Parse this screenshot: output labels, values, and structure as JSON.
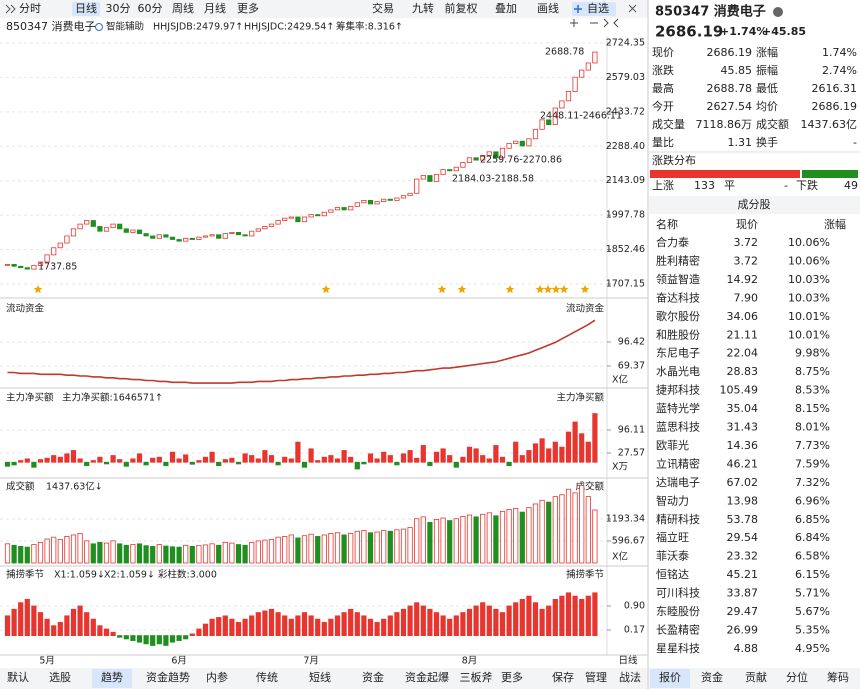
{
  "toolbar": {
    "left": [
      "分时",
      "日线",
      "30分",
      "60分",
      "周线",
      "月线",
      "更多"
    ],
    "right": [
      "交易",
      "九转",
      "前复权",
      "叠加",
      "画线",
      "自选"
    ]
  },
  "indicator_bar": {
    "name": "850347 消费电子",
    "assist": "智能辅助",
    "items": [
      "HHJSJDB:2479.97↑",
      "HHJSJDC:2429.54↑",
      "筹集率:8.316↑"
    ]
  },
  "chart_data": [
    {
      "type": "candlestick",
      "up_color": "#e8352e",
      "down_color": "#1f8f1f",
      "values": [
        1790,
        1782,
        1776,
        1770,
        1785,
        1800,
        1830,
        1860,
        1880,
        1910,
        1940,
        1960,
        1975,
        1950,
        1930,
        1945,
        1960,
        1940,
        1925,
        1935,
        1920,
        1910,
        1900,
        1915,
        1905,
        1895,
        1888,
        1900,
        1895,
        1905,
        1910,
        1915,
        1900,
        1920,
        1925,
        1915,
        1910,
        1930,
        1940,
        1950,
        1960,
        1975,
        1985,
        1990,
        1970,
        1990,
        2000,
        1995,
        2010,
        2020,
        2030,
        2020,
        2035,
        2050,
        2060,
        2045,
        2055,
        2065,
        2060,
        2070,
        2080,
        2090,
        2150,
        2165,
        2140,
        2170,
        2190,
        2185,
        2200,
        2220,
        2240,
        2230,
        2250,
        2265,
        2240,
        2280,
        2300,
        2310,
        2290,
        2320,
        2360,
        2400,
        2380,
        2450,
        2480,
        2520,
        2580,
        2610,
        2640,
        2686
      ],
      "ylim": [
        1707.15,
        2724.35
      ],
      "yticks": [
        2724.35,
        2579.03,
        2433.72,
        {
          "value": 2288.4,
          "label": "2288.40"
        },
        2143.09,
        1997.78,
        1852.46,
        1707.15
      ],
      "annotations": [
        "2688.78",
        "2448.11-2466.11",
        "2259.76-2270.86",
        "2184.03-2188.58",
        "1737.85"
      ]
    },
    {
      "type": "line",
      "title": "流动资金",
      "unit": "X亿",
      "color": "#c0392b",
      "values": [
        62,
        62,
        61,
        61,
        61,
        60,
        60,
        60,
        60,
        59,
        59,
        58,
        58,
        57,
        57,
        56,
        56,
        55,
        55,
        54,
        54,
        53,
        53,
        52,
        52,
        51,
        51,
        51,
        50,
        50,
        50,
        50,
        50,
        50,
        50,
        51,
        51,
        51,
        52,
        52,
        52,
        53,
        53,
        54,
        54,
        55,
        55,
        56,
        56,
        57,
        57,
        58,
        58,
        59,
        59,
        60,
        60,
        61,
        61,
        62,
        62,
        63,
        64,
        64,
        65,
        66,
        67,
        67,
        68,
        69,
        70,
        71,
        72,
        73,
        74,
        76,
        78,
        80,
        82,
        84,
        87,
        90,
        93,
        96,
        100,
        104,
        108,
        112,
        116,
        121
      ],
      "ylim": [
        47.9,
        132.5
      ],
      "yticks": [
        96.42,
        69.37
      ]
    },
    {
      "type": "bar",
      "title": "主力净买额",
      "subtitle": "主力净买额:1646571↑",
      "unit": "X万",
      "values": [
        -12,
        -8,
        5,
        10,
        -15,
        8,
        12,
        20,
        15,
        25,
        35,
        10,
        -10,
        5,
        15,
        -5,
        20,
        8,
        -12,
        10,
        25,
        -8,
        12,
        15,
        -10,
        30,
        10,
        22,
        -6,
        5,
        15,
        30,
        -10,
        8,
        12,
        -5,
        25,
        20,
        10,
        35,
        20,
        -8,
        15,
        10,
        60,
        -15,
        40,
        5,
        15,
        20,
        10,
        35,
        15,
        -20,
        -5,
        25,
        10,
        30,
        20,
        -8,
        25,
        35,
        12,
        50,
        -10,
        30,
        40,
        20,
        -15,
        15,
        45,
        40,
        20,
        10,
        50,
        15,
        -10,
        60,
        20,
        35,
        55,
        70,
        40,
        60,
        45,
        90,
        120,
        85,
        60,
        145
      ],
      "ylim": [
        -29.1,
        200.4
      ],
      "yticks": [
        96.11,
        27.57
      ]
    },
    {
      "type": "volume",
      "title": "成交额",
      "subtitle": "1437.63亿↓",
      "unit": "X亿",
      "values": [
        520,
        480,
        450,
        430,
        500,
        560,
        650,
        700,
        640,
        720,
        760,
        800,
        600,
        520,
        560,
        540,
        600,
        520,
        480,
        500,
        520,
        470,
        450,
        500,
        460,
        440,
        430,
        480,
        450,
        470,
        490,
        520,
        480,
        560,
        540,
        500,
        480,
        560,
        600,
        620,
        640,
        700,
        720,
        760,
        680,
        740,
        780,
        720,
        760,
        800,
        820,
        760,
        800,
        860,
        880,
        820,
        840,
        880,
        860,
        900,
        920,
        960,
        1200,
        1250,
        1100,
        1180,
        1220,
        1150,
        1200,
        1260,
        1300,
        1250,
        1320,
        1360,
        1280,
        1400,
        1450,
        1480,
        1380,
        1500,
        1600,
        1700,
        1650,
        1800,
        1850,
        2000,
        1900,
        2100,
        1800,
        1437.63
      ],
      "ylim": [
        0,
        2250
      ],
      "yticks": [
        1193.34,
        596.67
      ]
    },
    {
      "type": "bar",
      "title": "捕捞季节",
      "items": [
        {
          "text": "X1:1.059↓",
          "color": "#e08a00"
        },
        {
          "text": "X2:1.059↓",
          "color": "#d63bd6"
        },
        {
          "text": "彩柱数:3.000",
          "color": "#1f8f1f"
        }
      ],
      "values": [
        0.6,
        0.8,
        1.0,
        1.1,
        0.9,
        0.7,
        0.5,
        0.3,
        0.4,
        0.6,
        0.8,
        0.9,
        0.7,
        0.5,
        0.3,
        0.2,
        0.1,
        -0.05,
        -0.1,
        -0.15,
        -0.2,
        -0.25,
        -0.3,
        -0.25,
        -0.3,
        -0.2,
        -0.15,
        -0.1,
        0.05,
        0.2,
        0.35,
        0.5,
        0.55,
        0.6,
        0.5,
        0.4,
        0.5,
        0.6,
        0.7,
        0.75,
        0.8,
        0.7,
        0.6,
        0.5,
        0.6,
        0.7,
        0.6,
        0.5,
        0.4,
        0.5,
        0.6,
        0.7,
        0.8,
        0.7,
        0.6,
        0.5,
        0.4,
        0.5,
        0.6,
        0.7,
        0.8,
        0.9,
        1.0,
        0.9,
        0.8,
        0.7,
        0.6,
        0.5,
        0.6,
        0.7,
        0.8,
        0.9,
        1.0,
        0.9,
        0.8,
        0.7,
        0.9,
        1.0,
        1.1,
        1.2,
        1.0,
        0.8,
        0.9,
        1.1,
        1.2,
        1.3,
        1.2,
        1.1,
        1.2,
        1.3
      ],
      "ylim": [
        -0.59,
        1.69
      ],
      "yticks": [
        {
          "value": 0.9,
          "label": "0.90"
        },
        0.17
      ]
    }
  ],
  "x_axis": {
    "months": [
      "5月",
      "6月",
      "7月",
      "8月"
    ],
    "period": "日线"
  },
  "bottom_tabs": {
    "left": [
      "默认",
      "选股",
      "趋势",
      "资金趋势",
      "内参",
      "传统",
      "短线",
      "资金",
      "资金起爆",
      "三板斧",
      "更多"
    ],
    "right": [
      "保存",
      "管理",
      "战法"
    ]
  },
  "quote": {
    "title": "850347 消费电子",
    "price": "2686.19",
    "change_pct": "+1.74%",
    "change": "+45.85",
    "rows": [
      [
        "现价",
        "2686.19",
        "涨幅",
        "1.74%"
      ],
      [
        "涨跌",
        "45.85",
        "振幅",
        "2.74%"
      ],
      [
        "最高",
        "2688.78",
        "最低",
        "2616.31"
      ],
      [
        "今开",
        "2627.54",
        "均价",
        "2686.19"
      ],
      [
        "成交量",
        "7118.86万",
        "成交额",
        "1437.63亿"
      ],
      [
        "量比",
        "1.31",
        "换手",
        "-"
      ]
    ],
    "dist_title": "涨跌分布",
    "up_label": "上涨",
    "up": 133,
    "flat_label": "平",
    "flat": "-",
    "down_label": "下跌",
    "down": 49,
    "components_title": "成分股",
    "columns": [
      "名称",
      "现价",
      "涨幅"
    ],
    "stocks": [
      {
        "name": "合力泰",
        "price": "3.72",
        "change": "10.06%",
        "color": "#d6249f"
      },
      {
        "name": "胜利精密",
        "price": "3.72",
        "change": "10.06%",
        "color": "#111"
      },
      {
        "name": "领益智造",
        "price": "14.92",
        "change": "10.03%",
        "color": "#2a6fdb"
      },
      {
        "name": "奋达科技",
        "price": "7.90",
        "change": "10.03%",
        "color": "#111"
      },
      {
        "name": "歌尔股份",
        "price": "34.06",
        "change": "10.01%",
        "color": "#111"
      },
      {
        "name": "和胜股份",
        "price": "21.11",
        "change": "10.01%",
        "color": "#111"
      },
      {
        "name": "东尼电子",
        "price": "22.04",
        "change": "9.98%",
        "color": "#111"
      },
      {
        "name": "水晶光电",
        "price": "28.83",
        "change": "8.75%",
        "color": "#2a6fdb"
      },
      {
        "name": "捷邦科技",
        "price": "105.49",
        "change": "8.53%",
        "color": "#111"
      },
      {
        "name": "蓝特光学",
        "price": "35.04",
        "change": "8.15%",
        "color": "#111"
      },
      {
        "name": "蓝思科技",
        "price": "31.43",
        "change": "8.01%",
        "color": "#111"
      },
      {
        "name": "欧菲光",
        "price": "14.36",
        "change": "7.73%",
        "color": "#2a6fdb"
      },
      {
        "name": "立讯精密",
        "price": "46.21",
        "change": "7.59%",
        "color": "#111"
      },
      {
        "name": "达瑞电子",
        "price": "67.02",
        "change": "7.32%",
        "color": "#2a6fdb"
      },
      {
        "name": "智动力",
        "price": "13.98",
        "change": "6.96%",
        "color": "#111"
      },
      {
        "name": "精研科技",
        "price": "53.78",
        "change": "6.85%",
        "color": "#111"
      },
      {
        "name": "福立旺",
        "price": "29.54",
        "change": "6.84%",
        "color": "#111"
      },
      {
        "name": "菲沃泰",
        "price": "23.32",
        "change": "6.58%",
        "color": "#111"
      },
      {
        "name": "恒铭达",
        "price": "45.21",
        "change": "6.15%",
        "color": "#111"
      },
      {
        "name": "可川科技",
        "price": "33.87",
        "change": "5.71%",
        "color": "#111"
      },
      {
        "name": "东睦股份",
        "price": "29.47",
        "change": "5.67%",
        "color": "#2a6fdb"
      },
      {
        "name": "长盈精密",
        "price": "26.99",
        "change": "5.35%",
        "color": "#111"
      },
      {
        "name": "星星科技",
        "price": "4.88",
        "change": "4.95%",
        "color": "#111"
      }
    ],
    "tabs": [
      "报价",
      "资金",
      "贡献",
      "分位",
      "筹码"
    ]
  }
}
